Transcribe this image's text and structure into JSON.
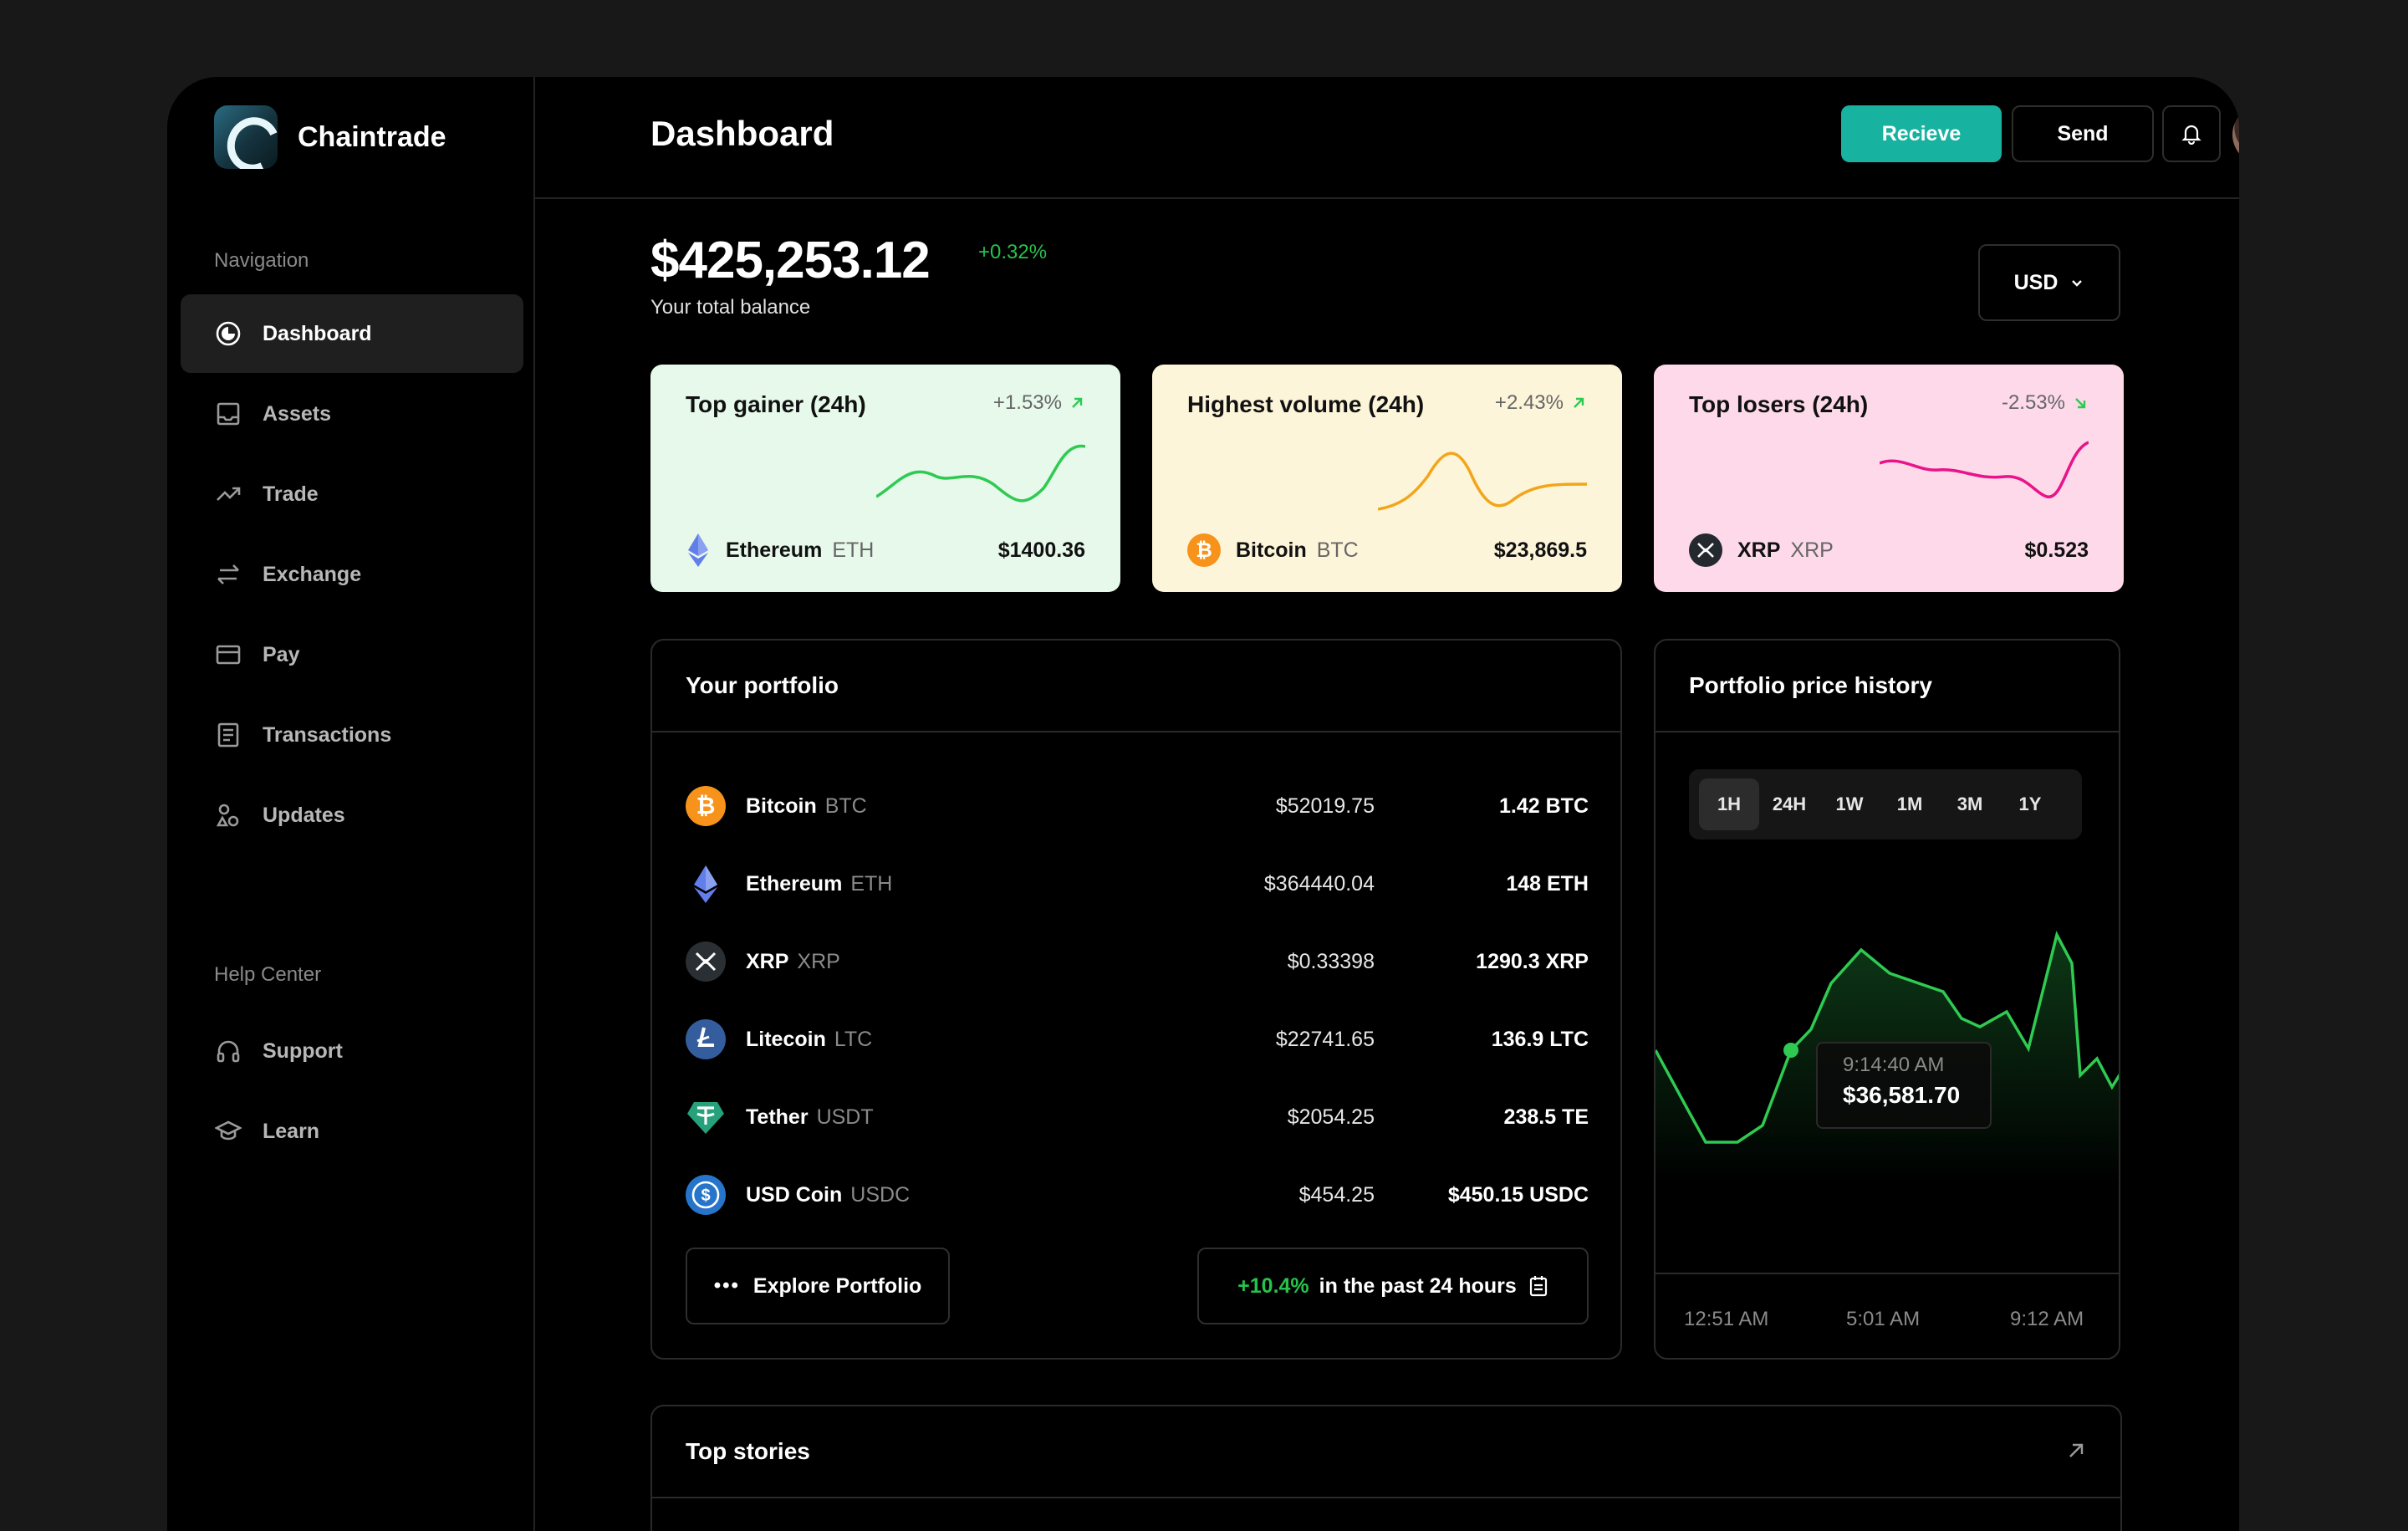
{
  "app": {
    "brand": "Chaintrade"
  },
  "sidebar": {
    "nav_title": "Navigation",
    "items": [
      {
        "label": "Dashboard",
        "icon": "dashboard-icon"
      },
      {
        "label": "Assets",
        "icon": "inbox-icon"
      },
      {
        "label": "Trade",
        "icon": "trend-icon"
      },
      {
        "label": "Exchange",
        "icon": "exchange-icon"
      },
      {
        "label": "Pay",
        "icon": "card-icon"
      },
      {
        "label": "Transactions",
        "icon": "document-icon"
      },
      {
        "label": "Updates",
        "icon": "shapes-icon"
      }
    ],
    "help_title": "Help Center",
    "help_items": [
      {
        "label": "Support",
        "icon": "headphones-icon"
      },
      {
        "label": "Learn",
        "icon": "graduation-cap-icon"
      }
    ]
  },
  "header": {
    "title": "Dashboard",
    "receive_label": "Recieve",
    "send_label": "Send"
  },
  "balance": {
    "amount": "$425,253.12",
    "change": "+0.32%",
    "label": "Your total balance",
    "currency": "USD"
  },
  "cards": [
    {
      "title": "Top gainer (24h)",
      "change": "+1.53%",
      "coin": "Ethereum",
      "symbol": "ETH",
      "price": "$1400.36",
      "bg": "#e6f9ea",
      "line": "#2fca52"
    },
    {
      "title": "Highest volume (24h)",
      "change": "+2.43%",
      "coin": "Bitcoin",
      "symbol": "BTC",
      "price": "$23,869.5",
      "bg": "#fdf5d9",
      "line": "#f2a51a"
    },
    {
      "title": "Top losers (24h)",
      "change": "-2.53%",
      "coin": "XRP",
      "symbol": "XRP",
      "price": "$0.523",
      "bg": "#fdd9ea",
      "line": "#e8148a"
    }
  ],
  "portfolio": {
    "title": "Your portfolio",
    "rows": [
      {
        "name": "Bitcoin",
        "symbol": "BTC",
        "value": "$52019.75",
        "amount": "1.42 BTC"
      },
      {
        "name": "Ethereum",
        "symbol": "ETH",
        "value": "$364440.04",
        "amount": "148 ETH"
      },
      {
        "name": "XRP",
        "symbol": "XRP",
        "value": "$0.33398",
        "amount": "1290.3 XRP"
      },
      {
        "name": "Litecoin",
        "symbol": "LTC",
        "value": "$22741.65",
        "amount": "136.9 LTC"
      },
      {
        "name": "Tether",
        "symbol": "USDT",
        "value": "$2054.25",
        "amount": "238.5 TE"
      },
      {
        "name": "USD Coin",
        "symbol": "USDC",
        "value": "$454.25",
        "amount": "$450.15 USDC"
      }
    ],
    "explore_label": "Explore Portfolio",
    "perf_pct": "+10.4%",
    "perf_text": "in the past 24 hours"
  },
  "history": {
    "title": "Portfolio price history",
    "ranges": [
      "1H",
      "24H",
      "1W",
      "1M",
      "3M",
      "1Y"
    ],
    "active_range": "1H",
    "tooltip_time": "9:14:40 AM",
    "tooltip_value": "$36,581.70",
    "x_labels": [
      "12:51 AM",
      "5:01 AM",
      "9:12 AM"
    ],
    "line_color": "#2fca52"
  },
  "stories": {
    "title": "Top stories"
  }
}
